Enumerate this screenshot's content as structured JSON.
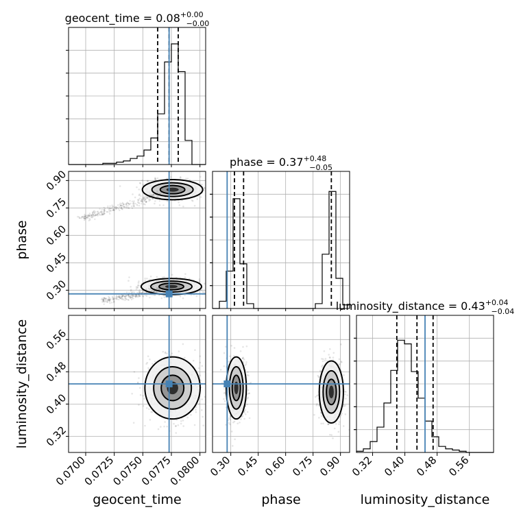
{
  "chart_data": {
    "type": "corner",
    "parameters": [
      {
        "name": "geocent_time",
        "axis_label": "geocent_time",
        "title_prefix": "geocent_time = 0.08",
        "title_plus": "+0.00",
        "title_minus": "−0.00",
        "range": [
          0.0685,
          0.0805
        ],
        "ticks": [
          "0.0700",
          "0.0725",
          "0.0750",
          "0.0775",
          "0.0800"
        ],
        "tick_values": [
          0.07,
          0.0725,
          0.075,
          0.0775,
          0.08
        ],
        "truth": 0.0773,
        "quantiles": [
          0.0763,
          0.0773,
          0.0781
        ],
        "hist_heights": [
          0.0,
          0.0,
          0.0,
          0.0,
          0.0,
          0.01,
          0.01,
          0.02,
          0.03,
          0.05,
          0.07,
          0.12,
          0.22,
          0.42,
          0.85,
          1.0,
          0.77,
          0.2,
          0.0,
          0.0
        ]
      },
      {
        "name": "phase",
        "axis_label": "phase",
        "title_prefix": "phase = 0.37",
        "title_plus": "+0.48",
        "title_minus": "−0.05",
        "range": [
          0.2,
          0.95
        ],
        "ticks": [
          "0.30",
          "0.45",
          "0.60",
          "0.75",
          "0.90"
        ],
        "tick_values": [
          0.3,
          0.45,
          0.6,
          0.75,
          0.9
        ],
        "truth": 0.28,
        "quantiles": [
          0.32,
          0.37,
          0.85
        ],
        "hist_heights": [
          0.0,
          0.06,
          0.31,
          0.91,
          0.37,
          0.04,
          0.0,
          0.0,
          0.0,
          0.0,
          0.0,
          0.0,
          0.0,
          0.0,
          0.0,
          0.04,
          0.45,
          0.97,
          0.25,
          0.03
        ]
      },
      {
        "name": "luminosity_distance",
        "axis_label": "luminosity_distance",
        "title_prefix": "luminosity_distance = 0.43",
        "title_plus": "+0.04",
        "title_minus": "−0.04",
        "range": [
          0.28,
          0.62
        ],
        "ticks": [
          "0.32",
          "0.40",
          "0.48",
          "0.56"
        ],
        "tick_values": [
          0.32,
          0.4,
          0.48,
          0.56
        ],
        "truth": 0.45,
        "quantiles": [
          0.38,
          0.43,
          0.47
        ],
        "hist_heights": [
          0.01,
          0.03,
          0.09,
          0.21,
          0.41,
          0.68,
          0.93,
          0.9,
          0.67,
          0.45,
          0.26,
          0.13,
          0.05,
          0.03,
          0.02,
          0.01,
          0.0,
          0.0,
          0.0,
          0.0
        ]
      }
    ],
    "pairs": [
      {
        "x_param": "geocent_time",
        "y_param": "phase",
        "modes": [
          {
            "x": 0.0776,
            "y": 0.85,
            "sx": 0.0012,
            "sy": 0.025
          },
          {
            "x": 0.0775,
            "y": 0.32,
            "sx": 0.0012,
            "sy": 0.02
          }
        ],
        "tails": [
          {
            "x_from": 0.0695,
            "y_from": 0.69,
            "x_to": 0.0765,
            "y_to": 0.82
          },
          {
            "x_from": 0.0715,
            "y_from": 0.24,
            "x_to": 0.0765,
            "y_to": 0.3
          }
        ]
      },
      {
        "x_param": "geocent_time",
        "y_param": "luminosity_distance",
        "modes": [
          {
            "x": 0.0776,
            "y": 0.44,
            "sx": 0.0011,
            "sy": 0.035
          }
        ],
        "tails": []
      },
      {
        "x_param": "phase",
        "y_param": "luminosity_distance",
        "modes": [
          {
            "x": 0.33,
            "y": 0.44,
            "sx": 0.025,
            "sy": 0.035
          },
          {
            "x": 0.85,
            "y": 0.43,
            "sx": 0.03,
            "sy": 0.035
          }
        ],
        "tails": []
      }
    ],
    "grid": true,
    "truth_color": "#4682b4",
    "contour_color": "#000000"
  }
}
